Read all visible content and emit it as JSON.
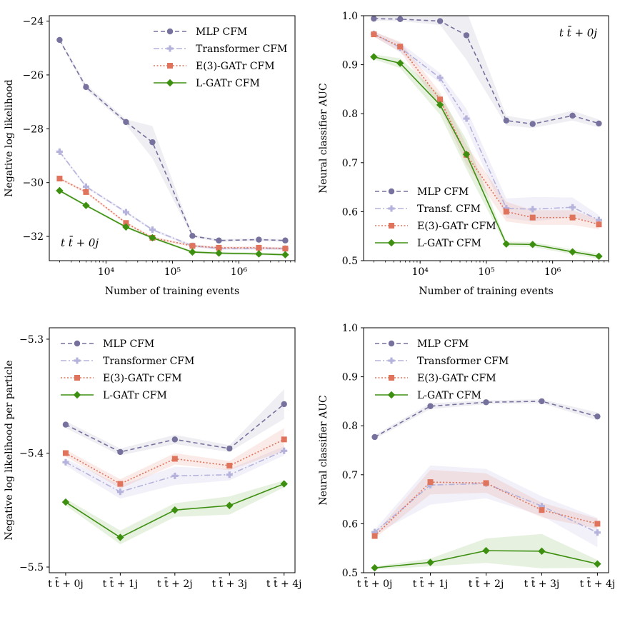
{
  "colors": {
    "mlp": "#76729d",
    "transformer": "#b5b3dc",
    "egatr": "#e0735b",
    "lgatr": "#3d8f10"
  },
  "chart_data": [
    {
      "id": "top-left",
      "type": "line",
      "xscale": "log",
      "xlim": [
        1400,
        7000000
      ],
      "ylim": [
        -32.9,
        -23.8
      ],
      "yticks": [
        -24,
        -26,
        -28,
        -30,
        -32
      ],
      "ytick_labels": [
        "−24",
        "−26",
        "−28",
        "−30",
        "−32"
      ],
      "xticks": [
        10000,
        100000,
        1000000
      ],
      "xtick_labels": [
        "10⁴",
        "10⁵",
        "10⁶"
      ],
      "xlabel": "Number of training events",
      "ylabel": "Negative log likelihood",
      "annotation": "t t̄ + 0j",
      "annotation_position": "bottom-left",
      "legend_position": "top-right",
      "x": [
        2000,
        5000,
        20000,
        50000,
        200000,
        500000,
        2000000,
        5000000
      ],
      "series": [
        {
          "key": "mlp",
          "name": "MLP CFM",
          "values": [
            -24.7,
            -26.45,
            -27.75,
            -28.5,
            -31.98,
            -32.15,
            -32.12,
            -32.15
          ],
          "band": [
            0.05,
            0.1,
            0.1,
            0.6,
            0.05,
            0.05,
            0.05,
            0.05
          ]
        },
        {
          "key": "transformer",
          "name": "Transformer CFM",
          "values": [
            -28.85,
            -30.15,
            -31.1,
            -31.75,
            -32.35,
            -32.45,
            -32.45,
            -32.45
          ],
          "band": [
            0.05,
            0.05,
            0.05,
            0.05,
            0.05,
            0.05,
            0.05,
            0.05
          ]
        },
        {
          "key": "egatr",
          "name": "E(3)-GATr CFM",
          "values": [
            -29.85,
            -30.35,
            -31.5,
            -32.05,
            -32.35,
            -32.42,
            -32.42,
            -32.45
          ],
          "band": [
            0.05,
            0.05,
            0.05,
            0.05,
            0.05,
            0.05,
            0.05,
            0.05
          ]
        },
        {
          "key": "lgatr",
          "name": "L-GATr CFM",
          "values": [
            -30.3,
            -30.85,
            -31.65,
            -32.05,
            -32.58,
            -32.62,
            -32.65,
            -32.68
          ],
          "band": [
            0.05,
            0.05,
            0.05,
            0.05,
            0.05,
            0.05,
            0.05,
            0.05
          ]
        }
      ]
    },
    {
      "id": "top-right",
      "type": "line",
      "xscale": "log",
      "xlim": [
        1400,
        7000000
      ],
      "ylim": [
        0.5,
        1.0
      ],
      "yticks": [
        0.5,
        0.6,
        0.7,
        0.8,
        0.9,
        1.0
      ],
      "ytick_labels": [
        "0.5",
        "0.6",
        "0.7",
        "0.8",
        "0.9",
        "1.0"
      ],
      "xticks": [
        10000,
        100000,
        1000000
      ],
      "xtick_labels": [
        "10⁴",
        "10⁵",
        "10⁶"
      ],
      "xlabel": "Number of training events",
      "ylabel": "Neural classifier AUC",
      "annotation": "t t̄ + 0j",
      "annotation_position": "top-right",
      "legend_position": "bottom-left",
      "x": [
        2000,
        5000,
        20000,
        50000,
        200000,
        500000,
        2000000,
        5000000
      ],
      "series": [
        {
          "key": "mlp",
          "name": "MLP CFM",
          "values": [
            0.994,
            0.993,
            0.989,
            0.96,
            0.786,
            0.779,
            0.796,
            0.78
          ],
          "band": [
            0.004,
            0.004,
            0.008,
            0.05,
            0.01,
            0.008,
            0.01,
            0.008
          ]
        },
        {
          "key": "transformer",
          "name": "Transf. CFM",
          "values": [
            0.963,
            0.935,
            0.873,
            0.79,
            0.607,
            0.605,
            0.609,
            0.583
          ],
          "band": [
            0.005,
            0.01,
            0.01,
            0.02,
            0.02,
            0.025,
            0.02,
            0.01
          ]
        },
        {
          "key": "egatr",
          "name": "E(3)-GATr CFM",
          "values": [
            0.962,
            0.937,
            0.829,
            0.716,
            0.6,
            0.588,
            0.588,
            0.574
          ],
          "band": [
            0.005,
            0.01,
            0.015,
            0.02,
            0.02,
            0.015,
            0.015,
            0.01
          ]
        },
        {
          "key": "lgatr",
          "name": "L-GATr CFM",
          "values": [
            0.916,
            0.903,
            0.818,
            0.717,
            0.534,
            0.533,
            0.518,
            0.509
          ],
          "band": [
            0.005,
            0.01,
            0.02,
            0.03,
            0.005,
            0.005,
            0.005,
            0.005
          ]
        }
      ]
    },
    {
      "id": "bottom-left",
      "type": "line",
      "xscale": "linear",
      "xlim": [
        -0.3,
        4.2
      ],
      "ylim": [
        -5.505,
        -5.29
      ],
      "yticks": [
        -5.3,
        -5.4,
        -5.5
      ],
      "ytick_labels": [
        "−5.3",
        "−5.4",
        "−5.5"
      ],
      "xticks": [
        0,
        1,
        2,
        3,
        4
      ],
      "xtick_labels": [
        "t t̄ + 0j",
        "t t̄ + 1j",
        "t t̄ + 2j",
        "t t̄ + 3j",
        "t t̄ + 4j"
      ],
      "xlabel": "",
      "ylabel": "Negative log likelihood per particle",
      "legend_position": "top-left",
      "x": [
        0,
        1,
        2,
        3,
        4
      ],
      "series": [
        {
          "key": "mlp",
          "name": "MLP CFM",
          "values": [
            -5.375,
            -5.399,
            -5.388,
            -5.396,
            -5.357
          ],
          "band": [
            0.003,
            0.003,
            0.004,
            0.003,
            0.013
          ]
        },
        {
          "key": "transformer",
          "name": "Transformer CFM",
          "values": [
            -5.408,
            -5.434,
            -5.42,
            -5.419,
            -5.398
          ],
          "band": [
            0.003,
            0.006,
            0.008,
            0.005,
            0.004
          ]
        },
        {
          "key": "egatr",
          "name": "E(3)-GATr CFM",
          "values": [
            -5.4,
            -5.427,
            -5.405,
            -5.411,
            -5.388
          ],
          "band": [
            0.003,
            0.004,
            0.005,
            0.004,
            0.01
          ]
        },
        {
          "key": "lgatr",
          "name": "L-GATr CFM",
          "values": [
            -5.443,
            -5.474,
            -5.45,
            -5.446,
            -5.427
          ],
          "band": [
            0.003,
            0.006,
            0.006,
            0.008,
            0.003
          ]
        }
      ]
    },
    {
      "id": "bottom-right",
      "type": "line",
      "xscale": "linear",
      "xlim": [
        -0.2,
        4.2
      ],
      "ylim": [
        0.5,
        1.0
      ],
      "yticks": [
        0.5,
        0.6,
        0.7,
        0.8,
        0.9,
        1.0
      ],
      "ytick_labels": [
        "0.5",
        "0.6",
        "0.7",
        "0.8",
        "0.9",
        "1.0"
      ],
      "xticks": [
        0,
        1,
        2,
        3,
        4
      ],
      "xtick_labels": [
        "t t̄ + 0j",
        "t t̄ + 1j",
        "t t̄ + 2j",
        "t t̄ + 3j",
        "t t̄ + 4j"
      ],
      "xlabel": "",
      "ylabel": "Neural classifier AUC",
      "legend_position": "top-left",
      "x": [
        0,
        1,
        2,
        3,
        4
      ],
      "series": [
        {
          "key": "mlp",
          "name": "MLP CFM",
          "values": [
            0.777,
            0.84,
            0.848,
            0.85,
            0.819
          ],
          "band": [
            0.004,
            0.006,
            0.004,
            0.004,
            0.008
          ]
        },
        {
          "key": "transformer",
          "name": "Transformer CFM",
          "values": [
            0.583,
            0.679,
            0.682,
            0.636,
            0.582
          ],
          "band": [
            0.005,
            0.04,
            0.03,
            0.02,
            0.03
          ]
        },
        {
          "key": "egatr",
          "name": "E(3)-GATr CFM",
          "values": [
            0.575,
            0.685,
            0.683,
            0.628,
            0.6
          ],
          "band": [
            0.005,
            0.025,
            0.02,
            0.015,
            0.01
          ]
        },
        {
          "key": "lgatr",
          "name": "L-GATr CFM",
          "values": [
            0.51,
            0.521,
            0.545,
            0.544,
            0.518
          ],
          "band": [
            0.003,
            0.008,
            0.025,
            0.035,
            0.008
          ]
        }
      ]
    }
  ]
}
